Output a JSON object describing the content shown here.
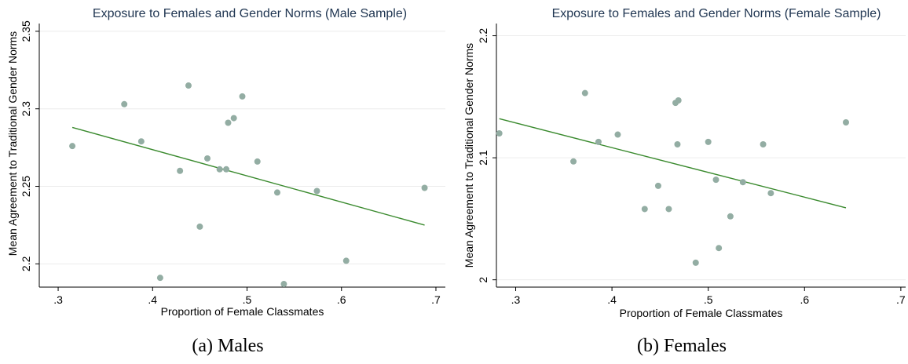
{
  "chart_data": [
    {
      "type": "scatter",
      "title": "Exposure to Females and Gender Norms (Male Sample)",
      "xlabel": "Proportion of Female Classmates",
      "ylabel": "Mean Agreement to Traditional Gender Norms",
      "xlim": [
        0.28,
        0.71
      ],
      "ylim": [
        2.185,
        2.355
      ],
      "xticks": [
        0.3,
        0.4,
        0.5,
        0.6,
        0.7
      ],
      "xtick_labels": [
        ".3",
        ".4",
        ".5",
        ".6",
        ".7"
      ],
      "yticks": [
        2.2,
        2.25,
        2.3,
        2.35
      ],
      "ytick_labels": [
        "2.2",
        "2.25",
        "2.3",
        "2.35"
      ],
      "grid": true,
      "colors": {
        "points": "#93ada3",
        "fit": "#3a8a2e",
        "title": "#1f3551"
      },
      "points": [
        {
          "x": 0.315,
          "y": 2.276
        },
        {
          "x": 0.37,
          "y": 2.303
        },
        {
          "x": 0.388,
          "y": 2.279
        },
        {
          "x": 0.408,
          "y": 2.191
        },
        {
          "x": 0.429,
          "y": 2.26
        },
        {
          "x": 0.438,
          "y": 2.315
        },
        {
          "x": 0.45,
          "y": 2.224
        },
        {
          "x": 0.458,
          "y": 2.268
        },
        {
          "x": 0.471,
          "y": 2.261
        },
        {
          "x": 0.478,
          "y": 2.261
        },
        {
          "x": 0.48,
          "y": 2.291
        },
        {
          "x": 0.486,
          "y": 2.294
        },
        {
          "x": 0.495,
          "y": 2.308
        },
        {
          "x": 0.511,
          "y": 2.266
        },
        {
          "x": 0.532,
          "y": 2.246
        },
        {
          "x": 0.539,
          "y": 2.187
        },
        {
          "x": 0.574,
          "y": 2.247
        },
        {
          "x": 0.605,
          "y": 2.202
        },
        {
          "x": 0.688,
          "y": 2.249
        }
      ],
      "fit_line": [
        {
          "x": 0.315,
          "y": 2.288
        },
        {
          "x": 0.688,
          "y": 2.225
        }
      ],
      "caption": "(a) Males"
    },
    {
      "type": "scatter",
      "title": "Exposure to Females and Gender Norms (Female Sample)",
      "xlabel": "Proportion of Female Classmates",
      "ylabel": "Mean Agreement to Traditional Gender Norms",
      "xlim": [
        0.28,
        0.705
      ],
      "ylim": [
        1.994,
        2.21
      ],
      "xticks": [
        0.3,
        0.4,
        0.5,
        0.6,
        0.7
      ],
      "xtick_labels": [
        ".3",
        ".4",
        ".5",
        ".6",
        ".7"
      ],
      "yticks": [
        2.0,
        2.1,
        2.2
      ],
      "ytick_labels": [
        "2",
        "2.1",
        "2.2"
      ],
      "grid": true,
      "colors": {
        "points": "#93ada3",
        "fit": "#3a8a2e",
        "title": "#1f3551"
      },
      "points": [
        {
          "x": 0.283,
          "y": 2.12
        },
        {
          "x": 0.36,
          "y": 2.097
        },
        {
          "x": 0.372,
          "y": 2.153
        },
        {
          "x": 0.386,
          "y": 2.113
        },
        {
          "x": 0.406,
          "y": 2.119
        },
        {
          "x": 0.434,
          "y": 2.058
        },
        {
          "x": 0.448,
          "y": 2.077
        },
        {
          "x": 0.459,
          "y": 2.058
        },
        {
          "x": 0.466,
          "y": 2.145
        },
        {
          "x": 0.468,
          "y": 2.111
        },
        {
          "x": 0.469,
          "y": 2.147
        },
        {
          "x": 0.487,
          "y": 2.014
        },
        {
          "x": 0.5,
          "y": 2.113
        },
        {
          "x": 0.508,
          "y": 2.082
        },
        {
          "x": 0.511,
          "y": 2.026
        },
        {
          "x": 0.523,
          "y": 2.052
        },
        {
          "x": 0.536,
          "y": 2.08
        },
        {
          "x": 0.557,
          "y": 2.111
        },
        {
          "x": 0.565,
          "y": 2.071
        },
        {
          "x": 0.643,
          "y": 2.129
        }
      ],
      "fit_line": [
        {
          "x": 0.283,
          "y": 2.132
        },
        {
          "x": 0.643,
          "y": 2.059
        }
      ],
      "caption": "(b) Females"
    }
  ]
}
